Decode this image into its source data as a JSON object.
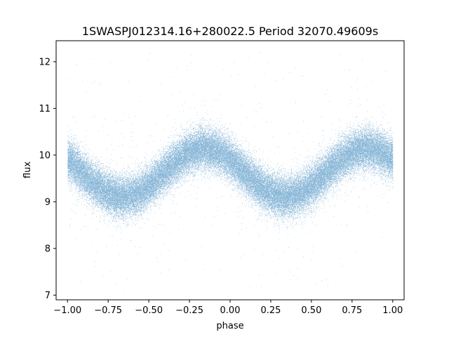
{
  "chart_data": {
    "type": "scatter",
    "title": "1SWASPJ012314.16+280022.5 Period 32070.49609s",
    "xlabel": "phase",
    "ylabel": "flux",
    "xlim": [
      -1.07,
      1.07
    ],
    "ylim": [
      6.9,
      12.45
    ],
    "x_ticks": [
      -1.0,
      -0.75,
      -0.5,
      -0.25,
      0.0,
      0.25,
      0.5,
      0.75,
      1.0
    ],
    "x_tick_labels": [
      "−1.00",
      "−0.75",
      "−0.50",
      "−0.25",
      "0.00",
      "0.25",
      "0.50",
      "0.75",
      "1.00"
    ],
    "y_ticks": [
      7,
      8,
      9,
      10,
      11,
      12
    ],
    "y_tick_labels": [
      "7",
      "8",
      "9",
      "10",
      "11",
      "12"
    ],
    "grid": false,
    "legend": "none",
    "point_color": "#1f77b4",
    "series": [
      {
        "x_range": [
          -1.0,
          1.0
        ],
        "points": 60000,
        "model": "sinusoid",
        "mean": 9.62,
        "amplitude": 0.52,
        "cycles_per_unit_phase": 1.0,
        "peak_phase": -0.16,
        "band_half_width": 0.42,
        "outlier_range": [
          7.1,
          12.2
        ]
      }
    ]
  }
}
